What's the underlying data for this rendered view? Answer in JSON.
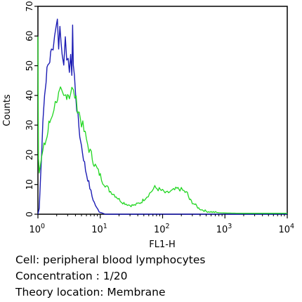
{
  "chart_data": {
    "type": "line",
    "xscale": "log",
    "xlim": [
      1,
      10000
    ],
    "ylim": [
      0,
      70
    ],
    "xlabel": "FL1-H",
    "ylabel": "Counts",
    "xticks": [
      {
        "value": 1,
        "base": "10",
        "exp": "0"
      },
      {
        "value": 10,
        "base": "10",
        "exp": "1"
      },
      {
        "value": 100,
        "base": "10",
        "exp": "2"
      },
      {
        "value": 1000,
        "base": "10",
        "exp": "3"
      },
      {
        "value": 10000,
        "base": "10",
        "exp": "4"
      }
    ],
    "yticks": [
      "0",
      "10",
      "20",
      "30",
      "40",
      "50",
      "60",
      "70"
    ],
    "series": [
      {
        "color": "#1c1cb4",
        "points": [
          [
            1.0,
            0
          ],
          [
            1.05,
            2
          ],
          [
            1.1,
            12
          ],
          [
            1.15,
            22
          ],
          [
            1.2,
            32
          ],
          [
            1.28,
            40
          ],
          [
            1.35,
            46
          ],
          [
            1.45,
            50
          ],
          [
            1.55,
            52
          ],
          [
            1.65,
            55
          ],
          [
            1.75,
            57
          ],
          [
            1.85,
            60
          ],
          [
            1.95,
            64
          ],
          [
            2.05,
            65
          ],
          [
            2.15,
            57
          ],
          [
            2.25,
            63
          ],
          [
            2.35,
            58
          ],
          [
            2.45,
            55
          ],
          [
            2.6,
            52
          ],
          [
            2.75,
            58
          ],
          [
            2.9,
            50
          ],
          [
            3.05,
            54
          ],
          [
            3.2,
            48
          ],
          [
            3.35,
            52
          ],
          [
            3.5,
            48
          ],
          [
            3.6,
            64
          ],
          [
            3.7,
            50
          ],
          [
            3.85,
            46
          ],
          [
            4.0,
            42
          ],
          [
            4.2,
            36
          ],
          [
            4.4,
            32
          ],
          [
            4.7,
            27
          ],
          [
            5.0,
            23
          ],
          [
            5.4,
            19
          ],
          [
            5.8,
            15
          ],
          [
            6.3,
            12
          ],
          [
            6.8,
            9
          ],
          [
            7.4,
            6
          ],
          [
            8.0,
            4
          ],
          [
            8.8,
            2
          ],
          [
            9.6,
            1
          ],
          [
            10.5,
            0.5
          ],
          [
            12,
            0
          ],
          [
            30,
            0
          ],
          [
            100,
            0
          ],
          [
            1000,
            0
          ],
          [
            10000,
            0
          ]
        ]
      },
      {
        "color": "#22d622",
        "points": [
          [
            1.0,
            60
          ],
          [
            1.02,
            20
          ],
          [
            1.05,
            15
          ],
          [
            1.1,
            17
          ],
          [
            1.2,
            21
          ],
          [
            1.3,
            24
          ],
          [
            1.4,
            26
          ],
          [
            1.5,
            30
          ],
          [
            1.6,
            32
          ],
          [
            1.7,
            34
          ],
          [
            1.8,
            36
          ],
          [
            1.9,
            37
          ],
          [
            2.0,
            39
          ],
          [
            2.15,
            40
          ],
          [
            2.3,
            41
          ],
          [
            2.45,
            40
          ],
          [
            2.6,
            39
          ],
          [
            2.8,
            40
          ],
          [
            3.0,
            41
          ],
          [
            3.2,
            40
          ],
          [
            3.5,
            42
          ],
          [
            3.7,
            41
          ],
          [
            3.9,
            40
          ],
          [
            4.1,
            38
          ],
          [
            4.3,
            36
          ],
          [
            4.6,
            34
          ],
          [
            5.0,
            31
          ],
          [
            5.5,
            28
          ],
          [
            6.0,
            25
          ],
          [
            6.6,
            22
          ],
          [
            7.2,
            20
          ],
          [
            8.0,
            17
          ],
          [
            9.0,
            15
          ],
          [
            10,
            13
          ],
          [
            11,
            11
          ],
          [
            12.5,
            9.5
          ],
          [
            14,
            8
          ],
          [
            16,
            7
          ],
          [
            18,
            6
          ],
          [
            20,
            5
          ],
          [
            23,
            4
          ],
          [
            26,
            3.5
          ],
          [
            30,
            3
          ],
          [
            35,
            3
          ],
          [
            40,
            3.5
          ],
          [
            45,
            4
          ],
          [
            50,
            5
          ],
          [
            56,
            6
          ],
          [
            62,
            7
          ],
          [
            68,
            8
          ],
          [
            75,
            9
          ],
          [
            85,
            8.5
          ],
          [
            95,
            8
          ],
          [
            105,
            7.5
          ],
          [
            115,
            7
          ],
          [
            130,
            7.5
          ],
          [
            150,
            8
          ],
          [
            170,
            8.5
          ],
          [
            190,
            8.5
          ],
          [
            210,
            8
          ],
          [
            230,
            7.5
          ],
          [
            250,
            7
          ],
          [
            270,
            5
          ],
          [
            300,
            4
          ],
          [
            340,
            3
          ],
          [
            380,
            2
          ],
          [
            430,
            1.5
          ],
          [
            500,
            1
          ],
          [
            600,
            0.8
          ],
          [
            800,
            0.5
          ],
          [
            1000,
            0.4
          ],
          [
            2000,
            0.3
          ],
          [
            4000,
            0.3
          ],
          [
            10000,
            0.3
          ]
        ]
      }
    ]
  },
  "caption": {
    "line1": "Cell: peripheral blood lymphocytes",
    "line2": "Concentration : 1/20",
    "line3": "Theory location: Membrane"
  }
}
